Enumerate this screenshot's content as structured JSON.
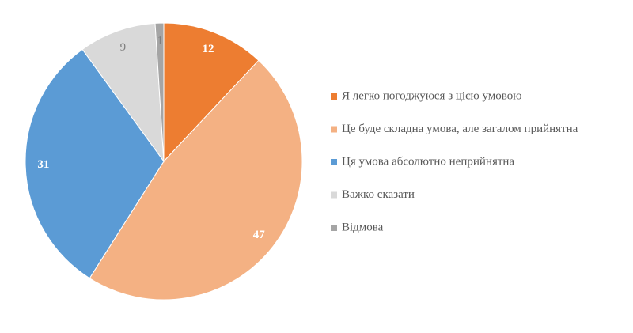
{
  "chart_data": {
    "type": "pie",
    "categories": [
      "Я легко погоджуюся з цією умовою",
      "Це буде складна умова, але загалом прийнятна",
      "Ця умова абсолютно неприйнятна",
      "Важко сказати",
      "Відмова"
    ],
    "values": [
      12,
      47,
      31,
      9,
      1
    ],
    "colors": [
      "#ED7D31",
      "#F4B183",
      "#5B9BD5",
      "#D9D9D9",
      "#A5A5A5"
    ],
    "label_colors": [
      "#ffffff",
      "#ffffff",
      "#ffffff",
      "#7f7f7f",
      "#7f7f7f"
    ],
    "legend": "right"
  }
}
